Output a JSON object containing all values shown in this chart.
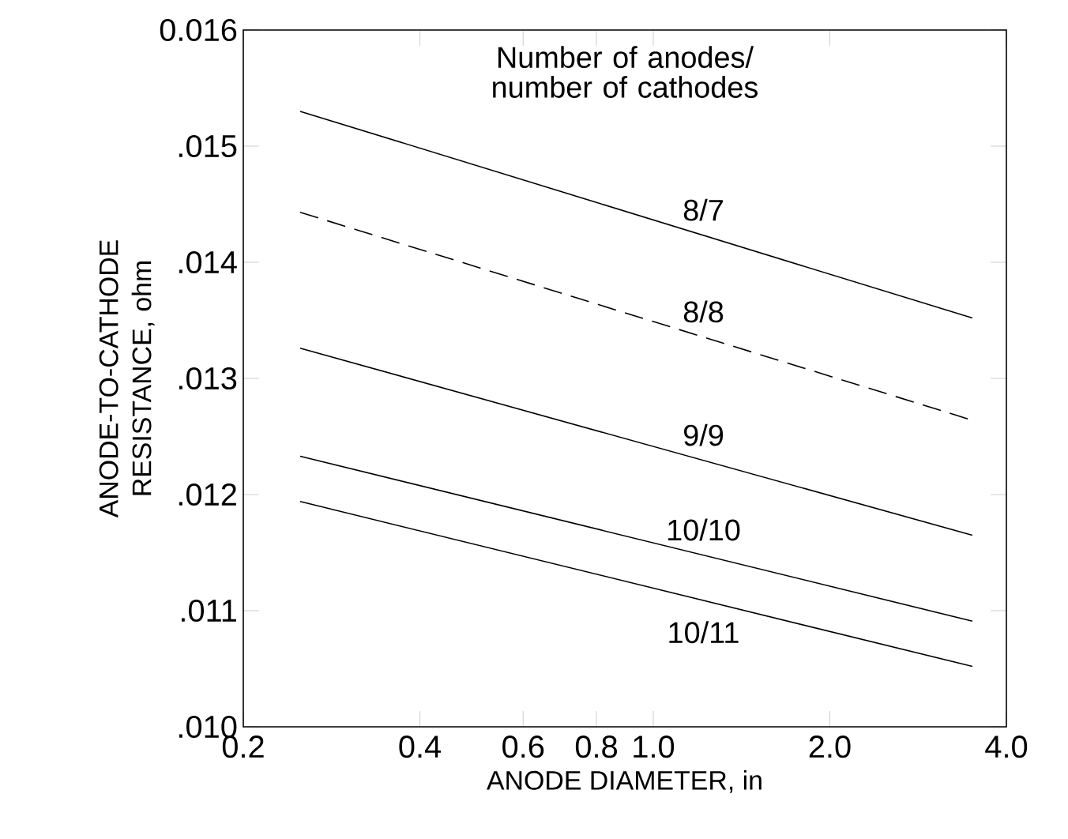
{
  "chart_data": {
    "type": "line",
    "xlabel": "ANODE DIAMETER, in",
    "ylabel": "ANODE-TO-CATHODE RESISTANCE, ohm",
    "legend_title": "Number of anodes/ number of cathodes",
    "log": "x",
    "xlim": [
      0.2,
      4.0
    ],
    "ylim": [
      0.01,
      0.016
    ],
    "xticks": [
      0.2,
      0.4,
      0.6,
      0.8,
      {
        "value": 1,
        "label": "1.0"
      },
      {
        "value": 2,
        "label": "2.0"
      },
      {
        "value": 4,
        "label": "4.0"
      }
    ],
    "yticks": [
      {
        "value": 0.01,
        "label": ".010"
      },
      {
        "value": 0.011,
        "label": ".011"
      },
      {
        "value": 0.012,
        "label": ".012"
      },
      {
        "value": 0.013,
        "label": ".013"
      },
      {
        "value": 0.014,
        "label": ".014"
      },
      {
        "value": 0.015,
        "label": ".015"
      },
      0.016
    ],
    "x": [
      0.25,
      3.5
    ],
    "legend": false,
    "series": [
      {
        "name": "8/7",
        "color": "#000000",
        "line_style": "solid",
        "values": [
          0.0153,
          0.01352
        ]
      },
      {
        "name": "8/8",
        "color": "#000000",
        "line_style": "dashed",
        "values": [
          0.01443,
          0.01264
        ]
      },
      {
        "name": "9/9",
        "color": "#000000",
        "line_style": "solid",
        "values": [
          0.01326,
          0.01165
        ]
      },
      {
        "name": "10/10",
        "color": "#000000",
        "line_style": "solid",
        "values": [
          0.01233,
          0.01091
        ]
      },
      {
        "name": "10/11",
        "color": "#000000",
        "line_style": "solid",
        "values": [
          0.01194,
          0.01052
        ]
      }
    ]
  }
}
